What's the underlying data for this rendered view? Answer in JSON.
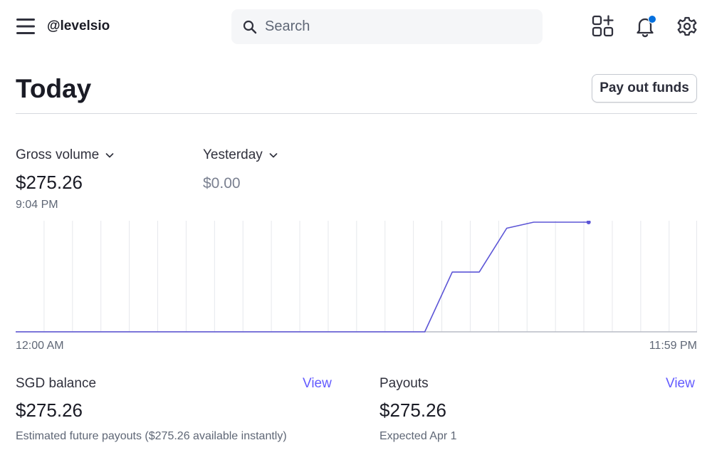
{
  "topbar": {
    "account": "@levelsio",
    "search_placeholder": "Search"
  },
  "header": {
    "title": "Today",
    "payout_button": "Pay out funds"
  },
  "metrics": {
    "primary": {
      "label": "Gross volume",
      "value": "$275.26",
      "time": "9:04 PM"
    },
    "comparison": {
      "label": "Yesterday",
      "value": "$0.00"
    }
  },
  "chart_data": {
    "type": "line",
    "x_start_label": "12:00 AM",
    "x_end_label": "11:59 PM",
    "line_color": "#5c55d6",
    "series": [
      {
        "x": [
          "12:00 AM",
          "2:24 PM",
          "3:22 PM",
          "4:19 PM",
          "5:17 PM",
          "6:14 PM",
          "8:10 PM"
        ],
        "values": [
          0,
          0,
          150,
          150,
          260,
          275.26,
          275.26
        ]
      }
    ],
    "ylim": [
      0,
      275.26
    ]
  },
  "balance": {
    "label": "SGD balance",
    "link": "View",
    "value": "$275.26",
    "subtext": "Estimated future payouts ($275.26 available instantly)"
  },
  "payouts": {
    "label": "Payouts",
    "link": "View",
    "value": "$275.26",
    "subtext": "Expected Apr 1"
  }
}
